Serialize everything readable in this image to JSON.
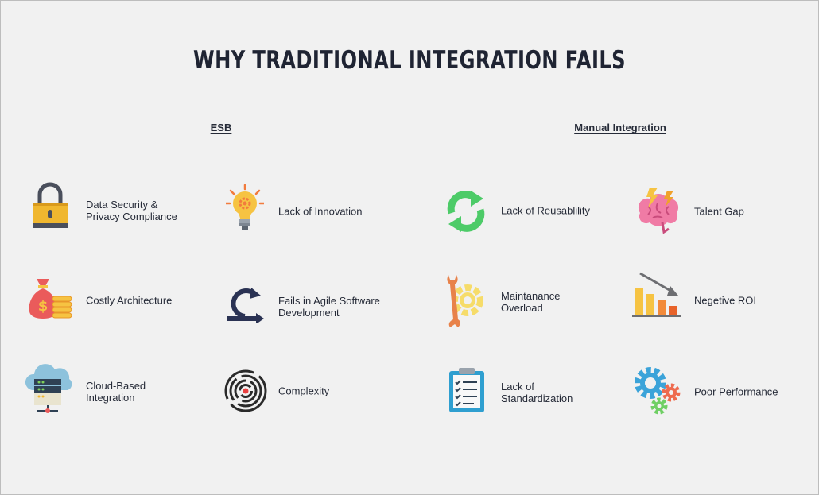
{
  "title": "WHY TRADITIONAL INTEGRATION FAILS",
  "sections": {
    "esb": {
      "heading": "ESB",
      "items": [
        {
          "label": "Data Security &\nPrivacy Compliance",
          "icon": "padlock-icon"
        },
        {
          "label": "Lack of Innovation",
          "icon": "lightbulb-icon"
        },
        {
          "label": "Costly Architecture",
          "icon": "money-bag-icon"
        },
        {
          "label": "Fails in Agile Software\nDevelopment",
          "icon": "agile-loop-icon"
        },
        {
          "label": "Cloud-Based\nIntegration",
          "icon": "cloud-server-icon"
        },
        {
          "label": "Complexity",
          "icon": "maze-icon"
        }
      ]
    },
    "manual": {
      "heading": "Manual Integration",
      "items": [
        {
          "label": "Lack of Reusablility",
          "icon": "recycle-arrows-icon"
        },
        {
          "label": "Talent Gap",
          "icon": "brain-icon"
        },
        {
          "label": "Maintanance\nOverload",
          "icon": "wrench-gear-icon"
        },
        {
          "label": "Negetive ROI",
          "icon": "declining-chart-icon"
        },
        {
          "label": "Lack of\nStandardization",
          "icon": "clipboard-checklist-icon"
        },
        {
          "label": "Poor Performance",
          "icon": "gears-icon"
        }
      ]
    }
  }
}
